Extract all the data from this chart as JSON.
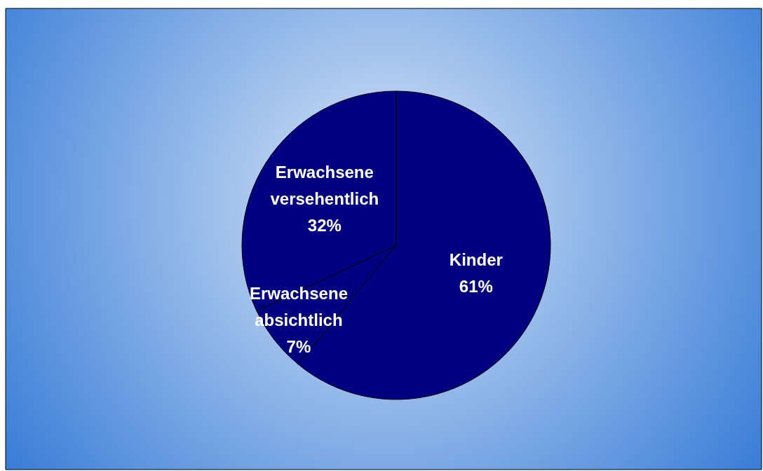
{
  "chart_data": {
    "type": "pie",
    "categories": [
      "Kinder",
      "Erwachsene absichtlich",
      "Erwachsene versehentlich"
    ],
    "values": [
      61,
      7,
      32
    ],
    "colors": [
      "#000080",
      "#000080",
      "#000080"
    ],
    "value_labels": [
      "61%",
      "7%",
      "32%"
    ]
  }
}
